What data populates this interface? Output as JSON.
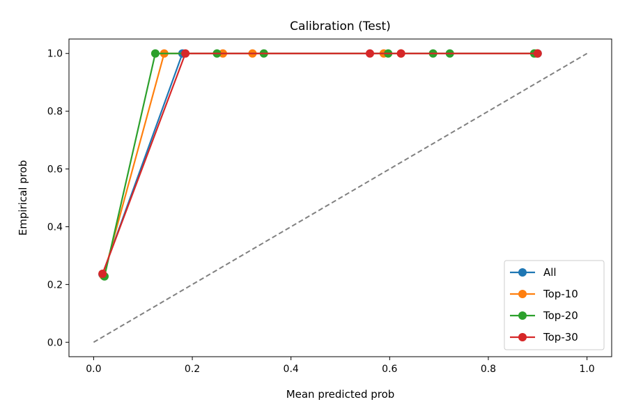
{
  "chart_data": {
    "type": "line",
    "title": "Calibration (Test)",
    "xlabel": "Mean predicted prob",
    "ylabel": "Empirical prob",
    "xlim": [
      -0.05,
      1.05
    ],
    "ylim": [
      -0.05,
      1.05
    ],
    "xticks": [
      "0.0",
      "0.2",
      "0.4",
      "0.6",
      "0.8",
      "1.0"
    ],
    "yticks": [
      "0.0",
      "0.2",
      "0.4",
      "0.6",
      "0.8",
      "1.0"
    ],
    "xtick_values": [
      0.0,
      0.2,
      0.4,
      0.6,
      0.8,
      1.0
    ],
    "ytick_values": [
      0.0,
      0.2,
      0.4,
      0.6,
      0.8,
      1.0
    ],
    "grid": false,
    "legend_position": "bottom-right",
    "reference_line": {
      "x": [
        0.0,
        1.0
      ],
      "y": [
        0.0,
        1.0
      ],
      "style": "dashed",
      "color": "#808080"
    },
    "series": [
      {
        "name": "All",
        "color": "#1f77b4",
        "x": [
          0.018,
          0.18,
          0.9
        ],
        "y": [
          0.235,
          1.0,
          1.0
        ]
      },
      {
        "name": "Top-10",
        "color": "#ff7f0e",
        "x": [
          0.02,
          0.143,
          0.262,
          0.322,
          0.588,
          0.623,
          0.897
        ],
        "y": [
          0.23,
          1.0,
          1.0,
          1.0,
          1.0,
          1.0,
          1.0
        ]
      },
      {
        "name": "Top-20",
        "color": "#2ca02c",
        "x": [
          0.022,
          0.125,
          0.25,
          0.345,
          0.597,
          0.688,
          0.722,
          0.893
        ],
        "y": [
          0.228,
          1.0,
          1.0,
          1.0,
          1.0,
          1.0,
          1.0,
          1.0
        ]
      },
      {
        "name": "Top-30",
        "color": "#d62728",
        "x": [
          0.018,
          0.186,
          0.56,
          0.623,
          0.9
        ],
        "y": [
          0.237,
          1.0,
          1.0,
          1.0,
          1.0
        ]
      }
    ]
  }
}
